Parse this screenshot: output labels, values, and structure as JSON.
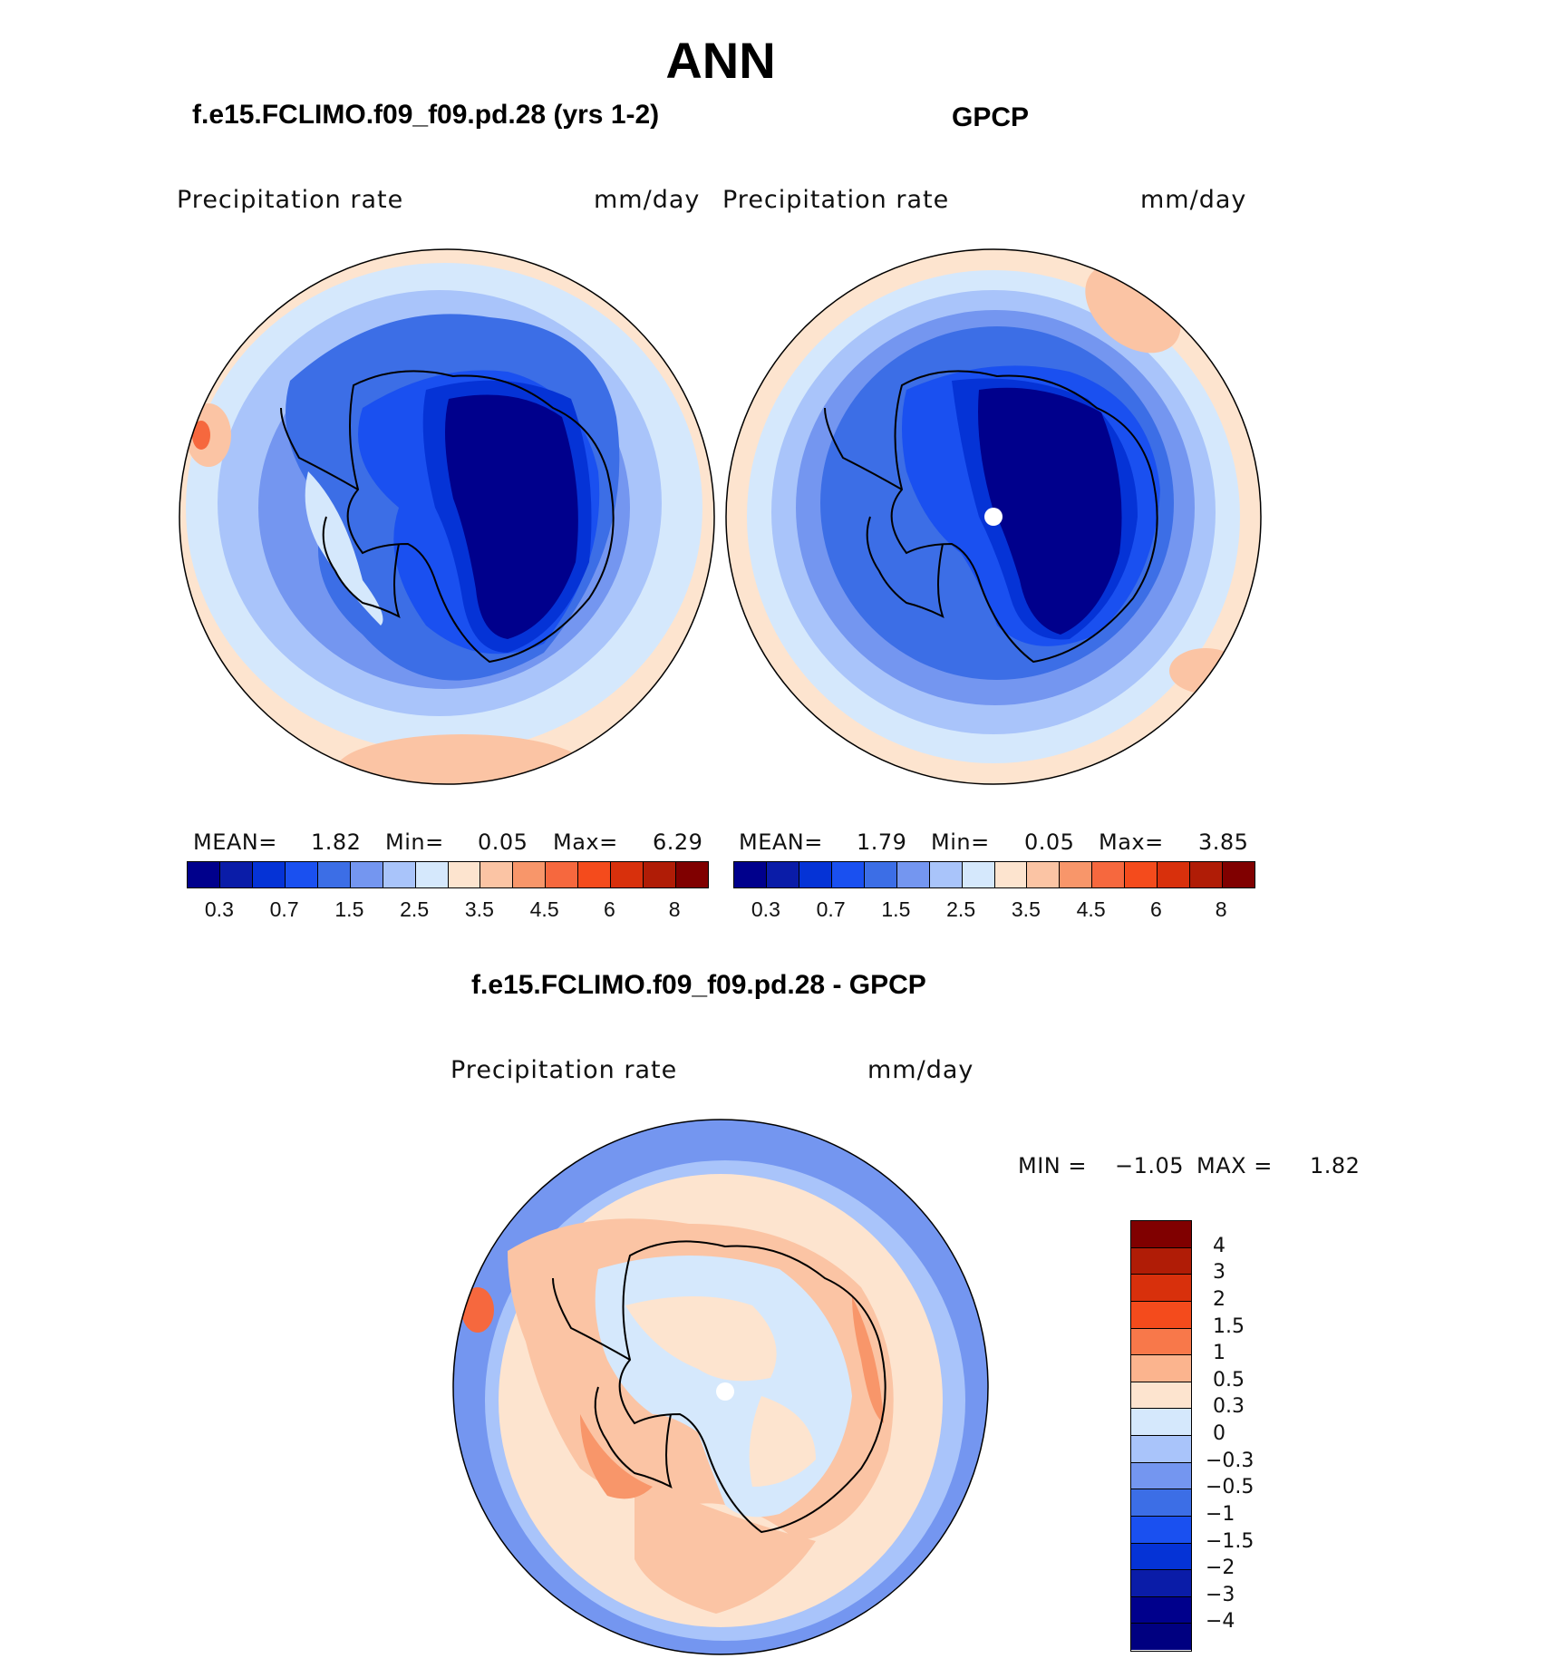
{
  "title": "ANN",
  "panels": {
    "model": {
      "title": "f.e15.FCLIMO.f09_f09.pd.28 (yrs 1-2)",
      "var_label": "Precipitation  rate",
      "units": "mm/day",
      "mean_label": "MEAN=",
      "mean": "1.82",
      "min_label": "Min=",
      "min": "0.05",
      "max_label": "Max=",
      "max": "6.29"
    },
    "obs": {
      "title": "GPCP",
      "var_label": "Precipitation  rate",
      "units": "mm/day",
      "mean_label": "MEAN=",
      "mean": "1.79",
      "min_label": "Min=",
      "min": "0.05",
      "max_label": "Max=",
      "max": "3.85"
    },
    "diff": {
      "title": "f.e15.FCLIMO.f09_f09.pd.28 - GPCP",
      "var_label": "Precipitation  rate",
      "units": "mm/day",
      "min_label": "MIN  =",
      "min": "−1.05",
      "max_label": "MAX  =",
      "max": "1.82"
    }
  },
  "colorbar_abs": {
    "colors": [
      "#00008c",
      "#0a1ca8",
      "#0533d6",
      "#1a50f0",
      "#3c6ee6",
      "#7496f0",
      "#a9c4fa",
      "#d5e8fc",
      "#fde4cf",
      "#fbc4a4",
      "#f8966a",
      "#f6683e",
      "#f44b1c",
      "#d8300c",
      "#b01c06",
      "#800000"
    ],
    "labels": [
      "0.3",
      "0.7",
      "1.5",
      "2.5",
      "3.5",
      "4.5",
      "6",
      "8"
    ]
  },
  "colorbar_diff": {
    "colors": [
      "#800000",
      "#b01c06",
      "#d8300c",
      "#f44b1c",
      "#f8784a",
      "#fbb48e",
      "#fde4cf",
      "#d5e8fc",
      "#a9c4fa",
      "#7496f0",
      "#3c6ee6",
      "#1a50f0",
      "#0533d6",
      "#0a1ca8",
      "#00008c"
    ],
    "labels": [
      "4",
      "3",
      "2",
      "1.5",
      "1",
      "0.5",
      "0.3",
      "0",
      "−0.3",
      "−0.5",
      "−1",
      "−1.5",
      "−2",
      "−3",
      "−4"
    ]
  }
}
